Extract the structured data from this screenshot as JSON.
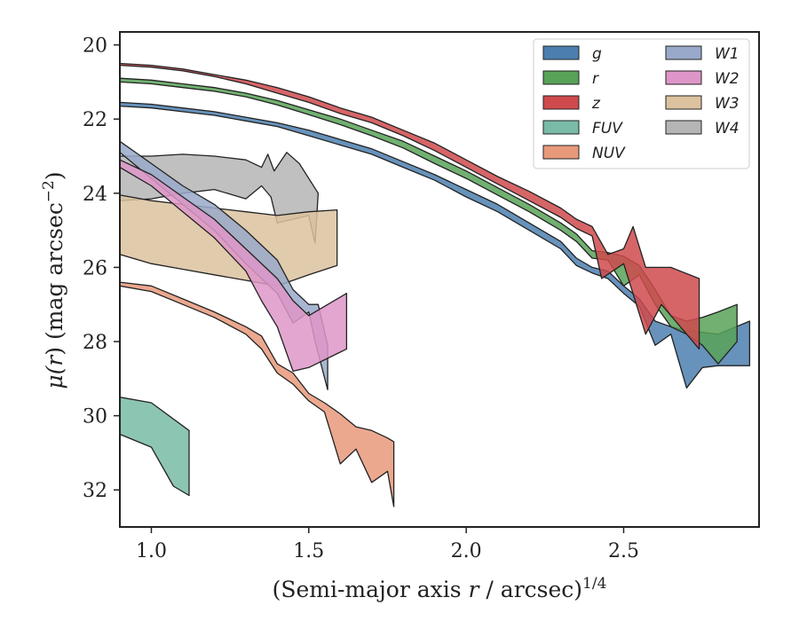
{
  "chart_data": {
    "type": "area",
    "title": "",
    "xlabel": "(Semi-major axis r / arcsec)^1/4",
    "xlabel_parts": {
      "prefix": "(Semi-major axis ",
      "var": "r",
      "suffix": " / arcsec)",
      "sup": "1/4"
    },
    "ylabel": "μ(r) (mag arcsec^-2)",
    "ylabel_parts": {
      "mu": "μ(",
      "var": "r",
      "mid": ") (mag arcsec",
      "sup": "−2",
      "end": ")"
    },
    "xlim": [
      0.9,
      2.93
    ],
    "ylim": [
      33.0,
      19.65
    ],
    "y_inverted": true,
    "grid": false,
    "legend_position": "top-right",
    "legend_columns": 2,
    "xticks": [
      {
        "value": 1.0,
        "label": "1.0"
      },
      {
        "value": 1.5,
        "label": "1.5"
      },
      {
        "value": 2.0,
        "label": "2.0"
      },
      {
        "value": 2.5,
        "label": "2.5"
      }
    ],
    "yticks": [
      {
        "value": 20,
        "label": "20"
      },
      {
        "value": 22,
        "label": "22"
      },
      {
        "value": 24,
        "label": "24"
      },
      {
        "value": 26,
        "label": "26"
      },
      {
        "value": 28,
        "label": "28"
      },
      {
        "value": 30,
        "label": "30"
      },
      {
        "value": 32,
        "label": "32"
      }
    ],
    "series": [
      {
        "name": "g",
        "color": "#4c7faf",
        "upper": [
          [
            0.9,
            21.55
          ],
          [
            1.0,
            21.6
          ],
          [
            1.1,
            21.7
          ],
          [
            1.2,
            21.8
          ],
          [
            1.3,
            21.95
          ],
          [
            1.4,
            22.1
          ],
          [
            1.5,
            22.3
          ],
          [
            1.6,
            22.55
          ],
          [
            1.7,
            22.8
          ],
          [
            1.8,
            23.15
          ],
          [
            1.9,
            23.5
          ],
          [
            2.0,
            23.9
          ],
          [
            2.1,
            24.3
          ],
          [
            2.2,
            24.8
          ],
          [
            2.3,
            25.3
          ],
          [
            2.35,
            25.75
          ],
          [
            2.4,
            26.0
          ],
          [
            2.45,
            26.1
          ],
          [
            2.5,
            26.5
          ],
          [
            2.55,
            26.85
          ],
          [
            2.6,
            27.45
          ],
          [
            2.65,
            27.6
          ],
          [
            2.7,
            27.7
          ],
          [
            2.8,
            27.8
          ],
          [
            2.9,
            27.45
          ]
        ],
        "lower": [
          [
            0.9,
            21.65
          ],
          [
            1.0,
            21.7
          ],
          [
            1.1,
            21.8
          ],
          [
            1.2,
            21.9
          ],
          [
            1.3,
            22.05
          ],
          [
            1.4,
            22.2
          ],
          [
            1.5,
            22.45
          ],
          [
            1.6,
            22.7
          ],
          [
            1.7,
            22.95
          ],
          [
            1.8,
            23.3
          ],
          [
            1.9,
            23.65
          ],
          [
            2.0,
            24.1
          ],
          [
            2.1,
            24.5
          ],
          [
            2.2,
            25.0
          ],
          [
            2.3,
            25.5
          ],
          [
            2.35,
            25.95
          ],
          [
            2.4,
            26.15
          ],
          [
            2.45,
            26.3
          ],
          [
            2.5,
            26.7
          ],
          [
            2.55,
            27.05
          ],
          [
            2.6,
            28.1
          ],
          [
            2.65,
            27.8
          ],
          [
            2.7,
            29.25
          ],
          [
            2.75,
            28.7
          ],
          [
            2.8,
            28.65
          ],
          [
            2.9,
            28.65
          ]
        ]
      },
      {
        "name": "r",
        "color": "#58a258",
        "upper": [
          [
            0.9,
            20.9
          ],
          [
            1.0,
            20.95
          ],
          [
            1.1,
            21.05
          ],
          [
            1.2,
            21.15
          ],
          [
            1.3,
            21.3
          ],
          [
            1.4,
            21.5
          ],
          [
            1.5,
            21.75
          ],
          [
            1.6,
            22.0
          ],
          [
            1.7,
            22.3
          ],
          [
            1.8,
            22.6
          ],
          [
            1.9,
            23.0
          ],
          [
            2.0,
            23.4
          ],
          [
            2.1,
            23.85
          ],
          [
            2.2,
            24.3
          ],
          [
            2.3,
            24.8
          ],
          [
            2.35,
            25.1
          ],
          [
            2.4,
            25.55
          ],
          [
            2.45,
            25.6
          ],
          [
            2.5,
            25.7
          ],
          [
            2.55,
            25.95
          ],
          [
            2.6,
            26.6
          ],
          [
            2.65,
            27.3
          ],
          [
            2.7,
            27.45
          ],
          [
            2.75,
            27.35
          ],
          [
            2.8,
            27.2
          ],
          [
            2.86,
            27.0
          ]
        ],
        "lower": [
          [
            0.9,
            21.0
          ],
          [
            1.0,
            21.05
          ],
          [
            1.1,
            21.15
          ],
          [
            1.2,
            21.25
          ],
          [
            1.3,
            21.4
          ],
          [
            1.4,
            21.62
          ],
          [
            1.5,
            21.88
          ],
          [
            1.6,
            22.15
          ],
          [
            1.7,
            22.45
          ],
          [
            1.8,
            22.78
          ],
          [
            1.9,
            23.2
          ],
          [
            2.0,
            23.6
          ],
          [
            2.1,
            24.05
          ],
          [
            2.2,
            24.5
          ],
          [
            2.3,
            25.0
          ],
          [
            2.35,
            25.3
          ],
          [
            2.4,
            25.75
          ],
          [
            2.45,
            25.8
          ],
          [
            2.5,
            26.5
          ],
          [
            2.55,
            26.2
          ],
          [
            2.6,
            27.0
          ],
          [
            2.65,
            27.6
          ],
          [
            2.7,
            27.8
          ],
          [
            2.75,
            28.1
          ],
          [
            2.8,
            28.6
          ],
          [
            2.86,
            28.0
          ]
        ]
      },
      {
        "name": "z",
        "color": "#cf4a4d",
        "upper": [
          [
            0.9,
            20.5
          ],
          [
            1.0,
            20.55
          ],
          [
            1.1,
            20.65
          ],
          [
            1.2,
            20.8
          ],
          [
            1.3,
            20.95
          ],
          [
            1.4,
            21.15
          ],
          [
            1.5,
            21.4
          ],
          [
            1.6,
            21.7
          ],
          [
            1.7,
            21.95
          ],
          [
            1.8,
            22.3
          ],
          [
            1.9,
            22.65
          ],
          [
            2.0,
            23.1
          ],
          [
            2.1,
            23.55
          ],
          [
            2.2,
            23.95
          ],
          [
            2.3,
            24.4
          ],
          [
            2.35,
            24.7
          ],
          [
            2.4,
            24.9
          ],
          [
            2.45,
            25.65
          ],
          [
            2.5,
            25.5
          ],
          [
            2.53,
            24.9
          ],
          [
            2.57,
            26.0
          ],
          [
            2.65,
            26.0
          ],
          [
            2.74,
            26.3
          ]
        ],
        "lower": [
          [
            0.9,
            20.55
          ],
          [
            1.0,
            20.6
          ],
          [
            1.1,
            20.7
          ],
          [
            1.2,
            20.85
          ],
          [
            1.3,
            21.05
          ],
          [
            1.4,
            21.3
          ],
          [
            1.5,
            21.55
          ],
          [
            1.6,
            21.85
          ],
          [
            1.7,
            22.1
          ],
          [
            1.8,
            22.45
          ],
          [
            1.9,
            22.85
          ],
          [
            2.0,
            23.3
          ],
          [
            2.1,
            23.75
          ],
          [
            2.2,
            24.2
          ],
          [
            2.3,
            24.65
          ],
          [
            2.35,
            24.95
          ],
          [
            2.4,
            25.15
          ],
          [
            2.43,
            26.3
          ],
          [
            2.5,
            25.9
          ],
          [
            2.57,
            27.8
          ],
          [
            2.62,
            27.0
          ],
          [
            2.74,
            28.2
          ]
        ]
      },
      {
        "name": "FUV",
        "color": "#79bba6",
        "upper": [
          [
            0.9,
            29.5
          ],
          [
            1.0,
            29.65
          ],
          [
            1.12,
            30.4
          ]
        ],
        "lower": [
          [
            0.9,
            30.5
          ],
          [
            1.0,
            30.85
          ],
          [
            1.07,
            31.9
          ],
          [
            1.12,
            32.15
          ]
        ]
      },
      {
        "name": "NUV",
        "color": "#e8997b",
        "upper": [
          [
            0.9,
            26.4
          ],
          [
            1.0,
            26.5
          ],
          [
            1.1,
            26.85
          ],
          [
            1.2,
            27.2
          ],
          [
            1.3,
            27.6
          ],
          [
            1.35,
            27.85
          ],
          [
            1.4,
            28.6
          ],
          [
            1.45,
            28.85
          ],
          [
            1.5,
            29.4
          ],
          [
            1.55,
            29.65
          ],
          [
            1.6,
            29.95
          ],
          [
            1.65,
            30.3
          ],
          [
            1.7,
            30.4
          ],
          [
            1.75,
            30.6
          ],
          [
            1.77,
            30.7
          ]
        ],
        "lower": [
          [
            0.9,
            26.5
          ],
          [
            1.0,
            26.65
          ],
          [
            1.1,
            27.0
          ],
          [
            1.2,
            27.35
          ],
          [
            1.3,
            27.8
          ],
          [
            1.35,
            28.2
          ],
          [
            1.4,
            28.85
          ],
          [
            1.45,
            29.15
          ],
          [
            1.5,
            29.6
          ],
          [
            1.55,
            29.9
          ],
          [
            1.6,
            31.3
          ],
          [
            1.65,
            30.9
          ],
          [
            1.7,
            31.8
          ],
          [
            1.75,
            31.5
          ],
          [
            1.77,
            32.45
          ]
        ]
      },
      {
        "name": "W1",
        "color": "#99a9c9",
        "upper": [
          [
            0.9,
            22.6
          ],
          [
            1.0,
            23.2
          ],
          [
            1.1,
            23.8
          ],
          [
            1.2,
            24.3
          ],
          [
            1.3,
            25.0
          ],
          [
            1.4,
            25.8
          ],
          [
            1.45,
            26.6
          ],
          [
            1.5,
            27.0
          ],
          [
            1.53,
            27.0
          ],
          [
            1.56,
            28.1
          ]
        ],
        "lower": [
          [
            0.9,
            22.9
          ],
          [
            1.0,
            23.6
          ],
          [
            1.1,
            24.3
          ],
          [
            1.2,
            25.0
          ],
          [
            1.3,
            25.9
          ],
          [
            1.4,
            26.7
          ],
          [
            1.45,
            27.5
          ],
          [
            1.5,
            27.2
          ],
          [
            1.52,
            28.0
          ],
          [
            1.56,
            29.3
          ]
        ]
      },
      {
        "name": "W2",
        "color": "#de96c8",
        "upper": [
          [
            0.9,
            23.1
          ],
          [
            1.0,
            23.5
          ],
          [
            1.1,
            24.1
          ],
          [
            1.2,
            24.7
          ],
          [
            1.3,
            25.5
          ],
          [
            1.4,
            26.3
          ],
          [
            1.45,
            26.9
          ],
          [
            1.5,
            27.3
          ],
          [
            1.62,
            26.7
          ]
        ],
        "lower": [
          [
            0.9,
            23.3
          ],
          [
            1.0,
            23.8
          ],
          [
            1.1,
            24.5
          ],
          [
            1.2,
            25.2
          ],
          [
            1.3,
            26.1
          ],
          [
            1.35,
            26.9
          ],
          [
            1.4,
            27.6
          ],
          [
            1.45,
            28.8
          ],
          [
            1.5,
            28.7
          ],
          [
            1.62,
            28.2
          ]
        ]
      },
      {
        "name": "W3",
        "color": "#dcc29f",
        "upper": [
          [
            0.9,
            24.05
          ],
          [
            1.0,
            24.2
          ],
          [
            1.1,
            24.3
          ],
          [
            1.2,
            24.4
          ],
          [
            1.3,
            24.5
          ],
          [
            1.4,
            24.6
          ],
          [
            1.5,
            24.5
          ],
          [
            1.59,
            24.45
          ]
        ],
        "lower": [
          [
            0.9,
            25.65
          ],
          [
            1.0,
            25.9
          ],
          [
            1.1,
            26.05
          ],
          [
            1.2,
            26.2
          ],
          [
            1.3,
            26.35
          ],
          [
            1.4,
            26.5
          ],
          [
            1.5,
            26.2
          ],
          [
            1.59,
            25.95
          ]
        ]
      },
      {
        "name": "W4",
        "color": "#b5b5b5",
        "upper": [
          [
            0.9,
            23.0
          ],
          [
            1.0,
            23.0
          ],
          [
            1.1,
            22.95
          ],
          [
            1.2,
            23.0
          ],
          [
            1.3,
            23.1
          ],
          [
            1.35,
            23.3
          ],
          [
            1.37,
            22.95
          ],
          [
            1.39,
            23.4
          ],
          [
            1.43,
            22.9
          ],
          [
            1.47,
            23.2
          ],
          [
            1.53,
            24.0
          ]
        ],
        "lower": [
          [
            0.9,
            24.2
          ],
          [
            1.0,
            24.15
          ],
          [
            1.1,
            24.0
          ],
          [
            1.2,
            23.9
          ],
          [
            1.3,
            24.15
          ],
          [
            1.35,
            23.8
          ],
          [
            1.38,
            24.1
          ],
          [
            1.4,
            24.8
          ],
          [
            1.5,
            24.6
          ],
          [
            1.52,
            25.35
          ],
          [
            1.53,
            24.0
          ]
        ]
      }
    ]
  }
}
